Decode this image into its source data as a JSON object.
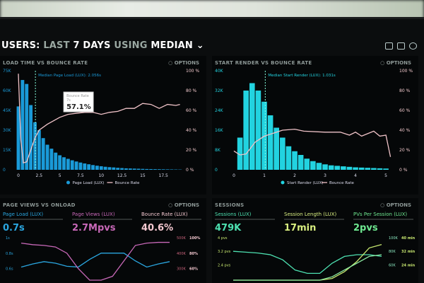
{
  "header": {
    "prefix": "USERS:",
    "part1": "LAST",
    "part2": "7 DAYS",
    "part3": "USING",
    "part4": "MEDIAN",
    "chevron": "chevron-down-icon"
  },
  "top_icons": [
    "monitor-icon",
    "share-icon",
    "help-icon"
  ],
  "options_label": "OPTIONS",
  "colors": {
    "bar_left": "#1a9ad8",
    "bar_right": "#22d3e0",
    "bounce": "#f0c3c8",
    "pink": "#c868b8",
    "blue": "#2aa6e0",
    "teal": "#4de0b0",
    "lime": "#c8e870"
  },
  "chart_data": [
    {
      "type": "bar",
      "title": "LOAD TIME VS BOUNCE RATE",
      "x_ticks": [
        "0",
        "2.5",
        "5",
        "7.5",
        "10",
        "12.5",
        "15",
        "17.5"
      ],
      "y_ticks": [
        "0",
        "15K",
        "30K",
        "45K",
        "60K",
        "75K"
      ],
      "y2_ticks": [
        "0 %",
        "20 %",
        "40 %",
        "60 %",
        "80 %",
        "100 %"
      ],
      "ylim": [
        0,
        75000
      ],
      "y2lim": [
        0,
        100
      ],
      "median_label": "Median Page Load (LUX): 2.056s",
      "median": 2.056,
      "tooltip": {
        "title": "Bounce Rate",
        "sub": "7s",
        "value": "57.1%"
      },
      "legend": [
        "Page Load (LUX)",
        "Bounce Rate"
      ],
      "bar_width": 0.5,
      "bars_x_start": 0,
      "values": [
        48000,
        68000,
        65000,
        49000,
        36000,
        30000,
        24000,
        19000,
        16000,
        13000,
        11000,
        9500,
        8300,
        7200,
        6300,
        5500,
        4800,
        4200,
        3600,
        3100,
        2700,
        2300,
        2000,
        1800,
        1500,
        1300,
        1100,
        1000,
        900,
        800,
        700,
        600,
        550,
        500,
        450,
        400,
        350,
        300,
        250,
        200
      ],
      "line": [
        [
          0,
          97
        ],
        [
          0.3,
          30
        ],
        [
          0.6,
          7
        ],
        [
          1,
          8
        ],
        [
          1.5,
          20
        ],
        [
          2,
          32
        ],
        [
          2.5,
          40
        ],
        [
          3.5,
          46
        ],
        [
          5,
          53
        ],
        [
          6,
          56
        ],
        [
          7,
          57.1
        ],
        [
          8,
          58
        ],
        [
          9,
          58
        ],
        [
          10,
          56
        ],
        [
          11,
          58
        ],
        [
          12,
          59
        ],
        [
          13,
          62
        ],
        [
          14,
          62
        ],
        [
          15,
          67
        ],
        [
          16,
          66
        ],
        [
          17,
          62
        ],
        [
          18,
          66
        ],
        [
          19,
          65
        ],
        [
          19.5,
          66
        ]
      ],
      "xlim": [
        0,
        19.7
      ]
    },
    {
      "type": "bar",
      "title": "START RENDER VS BOUNCE RATE",
      "x_ticks": [
        "0",
        "1",
        "2",
        "3",
        "4",
        "5"
      ],
      "y_ticks": [
        "0",
        "8K",
        "16K",
        "24K",
        "32K",
        "40K"
      ],
      "y2_ticks": [
        "0 %",
        "20 %",
        "40 %",
        "60 %",
        "80 %",
        "100 %"
      ],
      "ylim": [
        0,
        40000
      ],
      "y2lim": [
        0,
        100
      ],
      "median_label": "Median Start Render (LUX): 1.031s",
      "median": 1.031,
      "legend": [
        "Start Render (LUX)",
        "Bounce Rate"
      ],
      "bar_width": 0.2,
      "bars_x_start": 0.2,
      "values": [
        13000,
        32000,
        35000,
        32000,
        27500,
        22000,
        17000,
        13000,
        9500,
        7500,
        6000,
        4500,
        3500,
        2800,
        2200,
        1800,
        1600,
        1400,
        1200,
        1000,
        900,
        800,
        700,
        600,
        500
      ],
      "line": [
        [
          0,
          19
        ],
        [
          0.2,
          15
        ],
        [
          0.4,
          16
        ],
        [
          0.7,
          28
        ],
        [
          1,
          34
        ],
        [
          1.3,
          37
        ],
        [
          1.6,
          40
        ],
        [
          2,
          41
        ],
        [
          2.3,
          39
        ],
        [
          3,
          38
        ],
        [
          3.5,
          38
        ],
        [
          3.8,
          35
        ],
        [
          4,
          38
        ],
        [
          4.2,
          34
        ],
        [
          4.6,
          39
        ],
        [
          4.8,
          34
        ],
        [
          5,
          35
        ],
        [
          5.15,
          13
        ]
      ],
      "xlim": [
        0,
        5.3
      ]
    },
    {
      "type": "line",
      "title": "PAGE VIEWS VS ONLOAD",
      "kpis": [
        {
          "label": "Page Load (LUX)",
          "value": "0.7s"
        },
        {
          "label": "Page Views (LUX)",
          "value": "2.7Mpvs"
        },
        {
          "label": "Bounce Rate (LUX)",
          "value": "40.6%"
        }
      ],
      "y_ticks": [
        "1s",
        "0.8s",
        "0.6s"
      ],
      "y2_ticks": [
        "500K",
        "400K",
        "300K"
      ],
      "y3_ticks": [
        "100%",
        "80%",
        "60%"
      ],
      "series": [
        {
          "values": [
            0.62,
            0.66,
            0.69,
            0.67,
            0.63,
            0.62,
            0.72,
            0.8,
            0.8,
            0.8,
            0.7,
            0.62,
            0.66,
            0.69
          ]
        },
        {
          "values": [
            0.93,
            0.91,
            0.9,
            0.88,
            0.8,
            0.6,
            0.45,
            0.45,
            0.5,
            0.7,
            0.9,
            0.93,
            0.94,
            0.94
          ]
        }
      ]
    },
    {
      "type": "line",
      "title": "SESSIONS",
      "kpis": [
        {
          "label": "Sessions (LUX)",
          "value": "479K"
        },
        {
          "label": "Session Length (LUX)",
          "value": "17min"
        },
        {
          "label": "PVs Per Session (LUX)",
          "value": "2pvs"
        }
      ],
      "y_ticks": [
        "4 pvs",
        "3.2 pvs",
        "2.4 pvs"
      ],
      "y2_ticks": [
        "100K",
        "80K",
        "60K"
      ],
      "y3_ticks": [
        "40 min",
        "32 min",
        "24 min"
      ],
      "series": [
        {
          "values": [
            3.2,
            3.15,
            3.1,
            3.0,
            2.7,
            2.1,
            1.9,
            1.9,
            2.5,
            2.9,
            3.0,
            3.0,
            2.9
          ]
        },
        {
          "values": [
            1.5,
            1.5,
            1.5,
            1.5,
            1.5,
            1.5,
            1.5,
            1.5,
            1.6,
            2.0,
            2.6,
            3.4,
            3.6
          ]
        },
        {
          "values": [
            1.5,
            1.5,
            1.5,
            1.5,
            1.5,
            1.5,
            1.5,
            1.5,
            1.7,
            2.1,
            2.5,
            2.9,
            3.0
          ]
        }
      ]
    }
  ]
}
